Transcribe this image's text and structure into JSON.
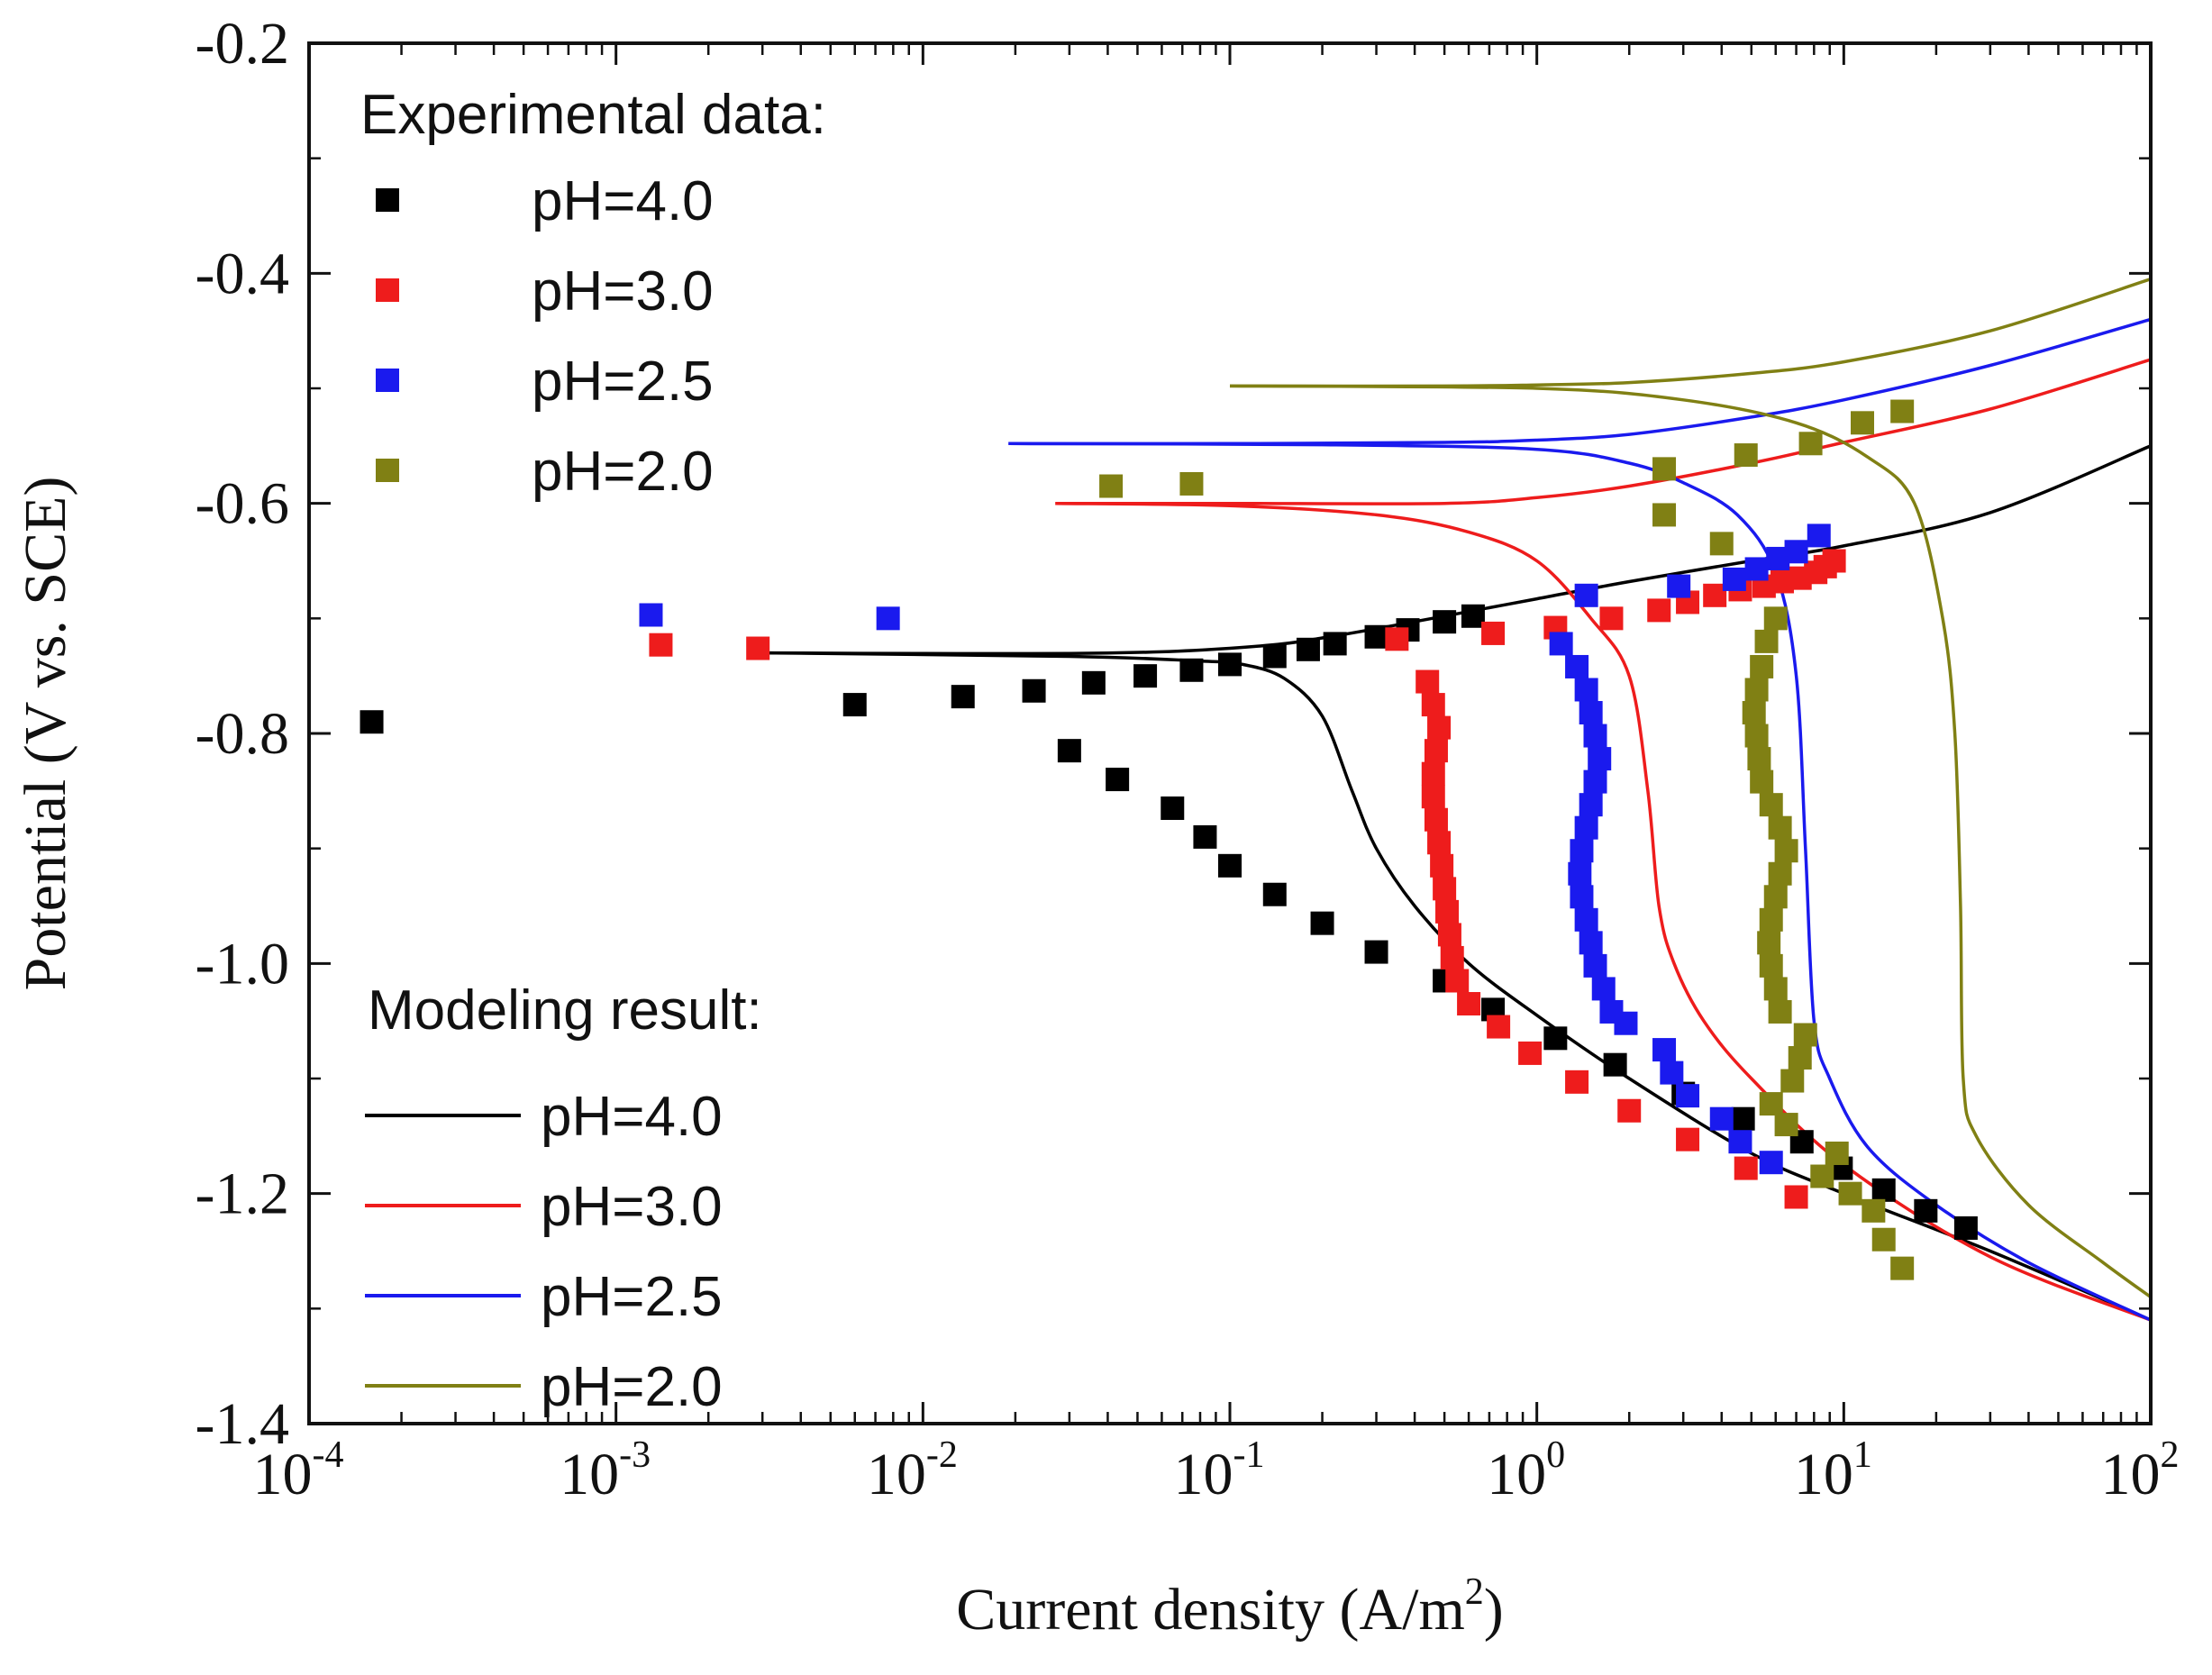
{
  "chart_data": {
    "type": "scatter",
    "title": "",
    "xlabel": "Current density (A/m",
    "xlabel_sup": "2",
    "xlabel_suffix": ")",
    "ylabel": "Potential (V vs. SCE)",
    "x_scale": "log",
    "xlim": [
      0.0001,
      100
    ],
    "ylim": [
      -1.4,
      -0.2
    ],
    "x_ticks": [
      {
        "value": 0.0001,
        "base": "10",
        "exp": "-4"
      },
      {
        "value": 0.001,
        "base": "10",
        "exp": "-3"
      },
      {
        "value": 0.01,
        "base": "10",
        "exp": "-2"
      },
      {
        "value": 0.1,
        "base": "10",
        "exp": "-1"
      },
      {
        "value": 1,
        "base": "10",
        "exp": "0"
      },
      {
        "value": 10,
        "base": "10",
        "exp": "1"
      },
      {
        "value": 100,
        "base": "10",
        "exp": "2"
      }
    ],
    "y_ticks": [
      {
        "value": -0.2,
        "label": "-0.2"
      },
      {
        "value": -0.4,
        "label": "-0.4"
      },
      {
        "value": -0.6,
        "label": "-0.6"
      },
      {
        "value": -0.8,
        "label": "-0.8"
      },
      {
        "value": -1.0,
        "label": "-1.0"
      },
      {
        "value": -1.2,
        "label": "-1.2"
      },
      {
        "value": -1.4,
        "label": "-1.4"
      }
    ],
    "legend": {
      "experimental_title": "Experimental data:",
      "modeling_title": "Modeling result:",
      "placement": "upper-left and lower-left"
    },
    "colors": {
      "pH4": "#000000",
      "pH3": "#ee1c1c",
      "pH25": "#1a1aee",
      "pH2": "#808014"
    },
    "experimental": [
      {
        "name": "pH=4.0",
        "color": "#000000",
        "points": [
          [
            0.00016,
            -0.79
          ],
          [
            0.006,
            -0.775
          ],
          [
            0.0135,
            -0.768
          ],
          [
            0.023,
            -0.763
          ],
          [
            0.036,
            -0.756
          ],
          [
            0.053,
            -0.75
          ],
          [
            0.075,
            -0.745
          ],
          [
            0.1,
            -0.74
          ],
          [
            0.14,
            -0.733
          ],
          [
            0.18,
            -0.727
          ],
          [
            0.22,
            -0.722
          ],
          [
            0.3,
            -0.716
          ],
          [
            0.38,
            -0.71
          ],
          [
            0.5,
            -0.703
          ],
          [
            0.62,
            -0.698
          ],
          [
            0.03,
            -0.815
          ],
          [
            0.043,
            -0.84
          ],
          [
            0.065,
            -0.865
          ],
          [
            0.083,
            -0.89
          ],
          [
            0.1,
            -0.915
          ],
          [
            0.14,
            -0.94
          ],
          [
            0.2,
            -0.965
          ],
          [
            0.3,
            -0.99
          ],
          [
            0.5,
            -1.015
          ],
          [
            0.72,
            -1.04
          ],
          [
            1.15,
            -1.065
          ],
          [
            1.8,
            -1.088
          ],
          [
            3.0,
            -1.113
          ],
          [
            4.7,
            -1.135
          ],
          [
            7.3,
            -1.155
          ],
          [
            9.8,
            -1.178
          ],
          [
            13.5,
            -1.197
          ],
          [
            18.5,
            -1.215
          ],
          [
            25,
            -1.23
          ]
        ]
      },
      {
        "name": "pH=3.0",
        "color": "#ee1c1c",
        "points": [
          [
            0.0014,
            -0.723
          ],
          [
            0.0029,
            -0.726
          ],
          [
            0.35,
            -0.718
          ],
          [
            0.72,
            -0.713
          ],
          [
            1.15,
            -0.708
          ],
          [
            1.75,
            -0.7
          ],
          [
            2.5,
            -0.693
          ],
          [
            3.1,
            -0.686
          ],
          [
            3.8,
            -0.68
          ],
          [
            4.6,
            -0.675
          ],
          [
            5.5,
            -0.672
          ],
          [
            6.3,
            -0.668
          ],
          [
            7.2,
            -0.665
          ],
          [
            8.1,
            -0.66
          ],
          [
            8.7,
            -0.655
          ],
          [
            9.3,
            -0.65
          ],
          [
            0.44,
            -0.755
          ],
          [
            0.46,
            -0.775
          ],
          [
            0.48,
            -0.795
          ],
          [
            0.47,
            -0.815
          ],
          [
            0.46,
            -0.835
          ],
          [
            0.46,
            -0.855
          ],
          [
            0.47,
            -0.875
          ],
          [
            0.48,
            -0.895
          ],
          [
            0.49,
            -0.915
          ],
          [
            0.5,
            -0.935
          ],
          [
            0.51,
            -0.955
          ],
          [
            0.52,
            -0.975
          ],
          [
            0.53,
            -0.995
          ],
          [
            0.55,
            -1.015
          ],
          [
            0.6,
            -1.035
          ],
          [
            0.75,
            -1.055
          ],
          [
            0.95,
            -1.078
          ],
          [
            1.35,
            -1.103
          ],
          [
            2.0,
            -1.128
          ],
          [
            3.1,
            -1.153
          ],
          [
            4.8,
            -1.178
          ],
          [
            7.0,
            -1.203
          ]
        ]
      },
      {
        "name": "pH=2.5",
        "color": "#1a1aee",
        "points": [
          [
            0.0013,
            -0.697
          ],
          [
            0.0077,
            -0.7
          ],
          [
            1.45,
            -0.68
          ],
          [
            2.9,
            -0.672
          ],
          [
            4.4,
            -0.666
          ],
          [
            5.2,
            -0.657
          ],
          [
            6.1,
            -0.648
          ],
          [
            7.0,
            -0.642
          ],
          [
            8.3,
            -0.628
          ],
          [
            1.2,
            -0.722
          ],
          [
            1.35,
            -0.742
          ],
          [
            1.45,
            -0.762
          ],
          [
            1.5,
            -0.782
          ],
          [
            1.55,
            -0.802
          ],
          [
            1.6,
            -0.822
          ],
          [
            1.55,
            -0.842
          ],
          [
            1.5,
            -0.862
          ],
          [
            1.45,
            -0.882
          ],
          [
            1.4,
            -0.902
          ],
          [
            1.38,
            -0.922
          ],
          [
            1.4,
            -0.942
          ],
          [
            1.45,
            -0.962
          ],
          [
            1.5,
            -0.982
          ],
          [
            1.55,
            -1.002
          ],
          [
            1.65,
            -1.022
          ],
          [
            1.75,
            -1.042
          ],
          [
            1.95,
            -1.052
          ],
          [
            2.6,
            -1.075
          ],
          [
            2.75,
            -1.095
          ],
          [
            3.1,
            -1.115
          ],
          [
            4.0,
            -1.135
          ],
          [
            4.6,
            -1.155
          ],
          [
            5.8,
            -1.173
          ]
        ]
      },
      {
        "name": "pH=2.0",
        "color": "#808014",
        "points": [
          [
            0.041,
            -0.585
          ],
          [
            0.075,
            -0.583
          ],
          [
            2.6,
            -0.57
          ],
          [
            4.8,
            -0.558
          ],
          [
            7.8,
            -0.548
          ],
          [
            11.5,
            -0.53
          ],
          [
            15.5,
            -0.52
          ],
          [
            2.6,
            -0.61
          ],
          [
            4.0,
            -0.635
          ],
          [
            6.0,
            -0.7
          ],
          [
            5.6,
            -0.72
          ],
          [
            5.4,
            -0.742
          ],
          [
            5.2,
            -0.762
          ],
          [
            5.1,
            -0.782
          ],
          [
            5.2,
            -0.802
          ],
          [
            5.3,
            -0.822
          ],
          [
            5.4,
            -0.842
          ],
          [
            5.8,
            -0.862
          ],
          [
            6.2,
            -0.882
          ],
          [
            6.5,
            -0.902
          ],
          [
            6.2,
            -0.922
          ],
          [
            6.0,
            -0.942
          ],
          [
            5.8,
            -0.962
          ],
          [
            5.7,
            -0.982
          ],
          [
            5.8,
            -1.002
          ],
          [
            6.0,
            -1.022
          ],
          [
            6.2,
            -1.042
          ],
          [
            7.5,
            -1.062
          ],
          [
            7.2,
            -1.082
          ],
          [
            6.8,
            -1.102
          ],
          [
            5.8,
            -1.122
          ],
          [
            6.5,
            -1.14
          ],
          [
            9.5,
            -1.165
          ],
          [
            8.5,
            -1.185
          ],
          [
            10.5,
            -1.2
          ],
          [
            12.5,
            -1.215
          ],
          [
            13.5,
            -1.24
          ],
          [
            15.5,
            -1.265
          ]
        ]
      }
    ],
    "modeling": [
      {
        "name": "pH=4.0",
        "color": "#000000",
        "points": [
          [
            0.003,
            -0.73
          ],
          [
            0.01,
            -0.7305
          ],
          [
            0.03,
            -0.7305
          ],
          [
            0.06,
            -0.729
          ],
          [
            0.1,
            -0.726
          ],
          [
            0.15,
            -0.722
          ],
          [
            0.2,
            -0.717
          ],
          [
            0.3,
            -0.709
          ],
          [
            0.5,
            -0.698
          ],
          [
            1,
            -0.683
          ],
          [
            2,
            -0.668
          ],
          [
            5,
            -0.65
          ],
          [
            10,
            -0.637
          ],
          [
            30,
            -0.608
          ],
          [
            100,
            -0.55
          ]
        ]
      },
      {
        "name": "pH=4.0",
        "color": "#000000",
        "points": [
          [
            0.003,
            -0.73
          ],
          [
            0.03,
            -0.733
          ],
          [
            0.08,
            -0.737
          ],
          [
            0.11,
            -0.74
          ],
          [
            0.15,
            -0.752
          ],
          [
            0.2,
            -0.785
          ],
          [
            0.25,
            -0.85
          ],
          [
            0.3,
            -0.9
          ],
          [
            0.4,
            -0.95
          ],
          [
            0.6,
            -1.0
          ],
          [
            1,
            -1.045
          ],
          [
            2,
            -1.1
          ],
          [
            5,
            -1.165
          ],
          [
            10,
            -1.2
          ],
          [
            30,
            -1.25
          ],
          [
            100,
            -1.31
          ]
        ]
      },
      {
        "name": "pH=3.0",
        "color": "#ee1c1c",
        "points": [
          [
            0.027,
            -0.6
          ],
          [
            0.1,
            -0.6
          ],
          [
            0.5,
            -0.6
          ],
          [
            1,
            -0.595
          ],
          [
            2,
            -0.585
          ],
          [
            5,
            -0.565
          ],
          [
            10,
            -0.547
          ],
          [
            30,
            -0.518
          ],
          [
            100,
            -0.475
          ]
        ]
      },
      {
        "name": "pH=3.0",
        "color": "#ee1c1c",
        "points": [
          [
            0.027,
            -0.6
          ],
          [
            0.1,
            -0.602
          ],
          [
            0.3,
            -0.61
          ],
          [
            0.6,
            -0.625
          ],
          [
            1,
            -0.65
          ],
          [
            1.5,
            -0.7
          ],
          [
            2,
            -0.75
          ],
          [
            2.3,
            -0.85
          ],
          [
            2.5,
            -0.95
          ],
          [
            2.8,
            -1.0
          ],
          [
            3.5,
            -1.05
          ],
          [
            5,
            -1.1
          ],
          [
            10,
            -1.175
          ],
          [
            30,
            -1.255
          ],
          [
            100,
            -1.31
          ]
        ]
      },
      {
        "name": "pH=2.5",
        "color": "#1a1aee",
        "points": [
          [
            0.019,
            -0.548
          ],
          [
            0.1,
            -0.548
          ],
          [
            0.5,
            -0.547
          ],
          [
            1,
            -0.545
          ],
          [
            2,
            -0.54
          ],
          [
            5,
            -0.525
          ],
          [
            10,
            -0.51
          ],
          [
            30,
            -0.48
          ],
          [
            100,
            -0.44
          ]
        ]
      },
      {
        "name": "pH=2.5",
        "color": "#1a1aee",
        "points": [
          [
            0.019,
            -0.548
          ],
          [
            0.2,
            -0.549
          ],
          [
            1,
            -0.553
          ],
          [
            2,
            -0.565
          ],
          [
            3,
            -0.582
          ],
          [
            4.5,
            -0.61
          ],
          [
            6,
            -0.66
          ],
          [
            7,
            -0.75
          ],
          [
            7.5,
            -0.9
          ],
          [
            8,
            -1.05
          ],
          [
            9,
            -1.1
          ],
          [
            12,
            -1.16
          ],
          [
            20,
            -1.21
          ],
          [
            40,
            -1.26
          ],
          [
            100,
            -1.31
          ]
        ]
      },
      {
        "name": "pH=2.0",
        "color": "#808014",
        "points": [
          [
            0.1,
            -0.498
          ],
          [
            0.5,
            -0.498
          ],
          [
            1,
            -0.497
          ],
          [
            2,
            -0.495
          ],
          [
            5,
            -0.487
          ],
          [
            10,
            -0.477
          ],
          [
            30,
            -0.45
          ],
          [
            100,
            -0.405
          ]
        ]
      },
      {
        "name": "pH=2.0",
        "color": "#808014",
        "points": [
          [
            0.1,
            -0.498
          ],
          [
            1,
            -0.5
          ],
          [
            3,
            -0.51
          ],
          [
            7,
            -0.53
          ],
          [
            12,
            -0.56
          ],
          [
            17,
            -0.6
          ],
          [
            21,
            -0.7
          ],
          [
            23,
            -0.8
          ],
          [
            24,
            -0.95
          ],
          [
            24.5,
            -1.1
          ],
          [
            27,
            -1.15
          ],
          [
            40,
            -1.21
          ],
          [
            70,
            -1.26
          ],
          [
            100,
            -1.29
          ]
        ]
      }
    ],
    "legend_items": [
      {
        "group": "experimental",
        "label": "pH=4.0",
        "color": "#000000"
      },
      {
        "group": "experimental",
        "label": "pH=3.0",
        "color": "#ee1c1c"
      },
      {
        "group": "experimental",
        "label": "pH=2.5",
        "color": "#1a1aee"
      },
      {
        "group": "experimental",
        "label": "pH=2.0",
        "color": "#808014"
      },
      {
        "group": "modeling",
        "label": "pH=4.0",
        "color": "#000000"
      },
      {
        "group": "modeling",
        "label": "pH=3.0",
        "color": "#ee1c1c"
      },
      {
        "group": "modeling",
        "label": "pH=2.5",
        "color": "#1a1aee"
      },
      {
        "group": "modeling",
        "label": "pH=2.0",
        "color": "#808014"
      }
    ]
  }
}
